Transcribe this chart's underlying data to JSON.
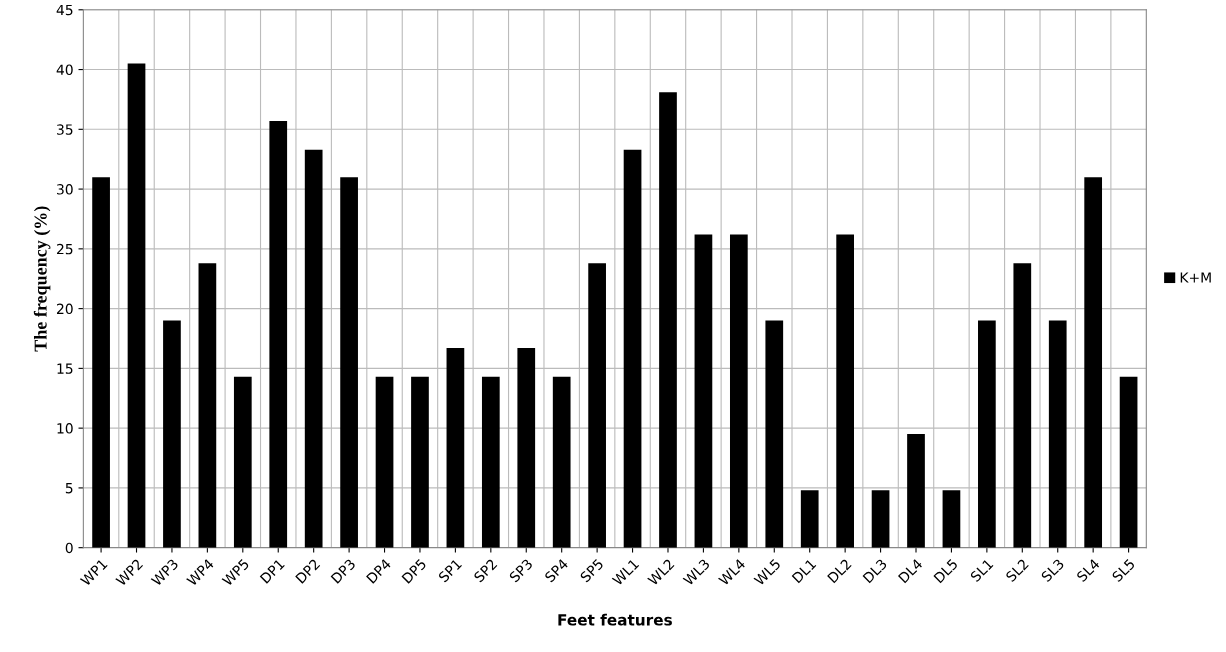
{
  "chart_data": {
    "type": "bar",
    "xlabel": "Feet features",
    "ylabel": "The frequency (%)",
    "categories": [
      "WP1",
      "WP2",
      "WP3",
      "WP4",
      "WP5",
      "DP1",
      "DP2",
      "DP3",
      "DP4",
      "DP5",
      "SP1",
      "SP2",
      "SP3",
      "SP4",
      "SP5",
      "WL1",
      "WL2",
      "WL3",
      "WL4",
      "WL5",
      "DL1",
      "DL2",
      "DL3",
      "DL4",
      "DL5",
      "SL1",
      "SL2",
      "SL3",
      "SL4",
      "SL5"
    ],
    "series": [
      {
        "name": "K+M",
        "color": "#000000",
        "values": [
          31,
          40.5,
          19,
          23.8,
          14.3,
          35.7,
          33.3,
          31,
          14.3,
          14.3,
          16.7,
          14.3,
          16.7,
          14.3,
          23.8,
          33.3,
          38.1,
          26.2,
          26.2,
          19,
          4.8,
          26.2,
          4.8,
          9.5,
          4.8,
          19,
          23.8,
          19,
          31,
          14.3
        ]
      }
    ],
    "ylim": [
      0,
      45
    ],
    "yticks": [
      0,
      5,
      10,
      15,
      20,
      25,
      30,
      35,
      40,
      45
    ],
    "grid": true,
    "legend": "right"
  }
}
